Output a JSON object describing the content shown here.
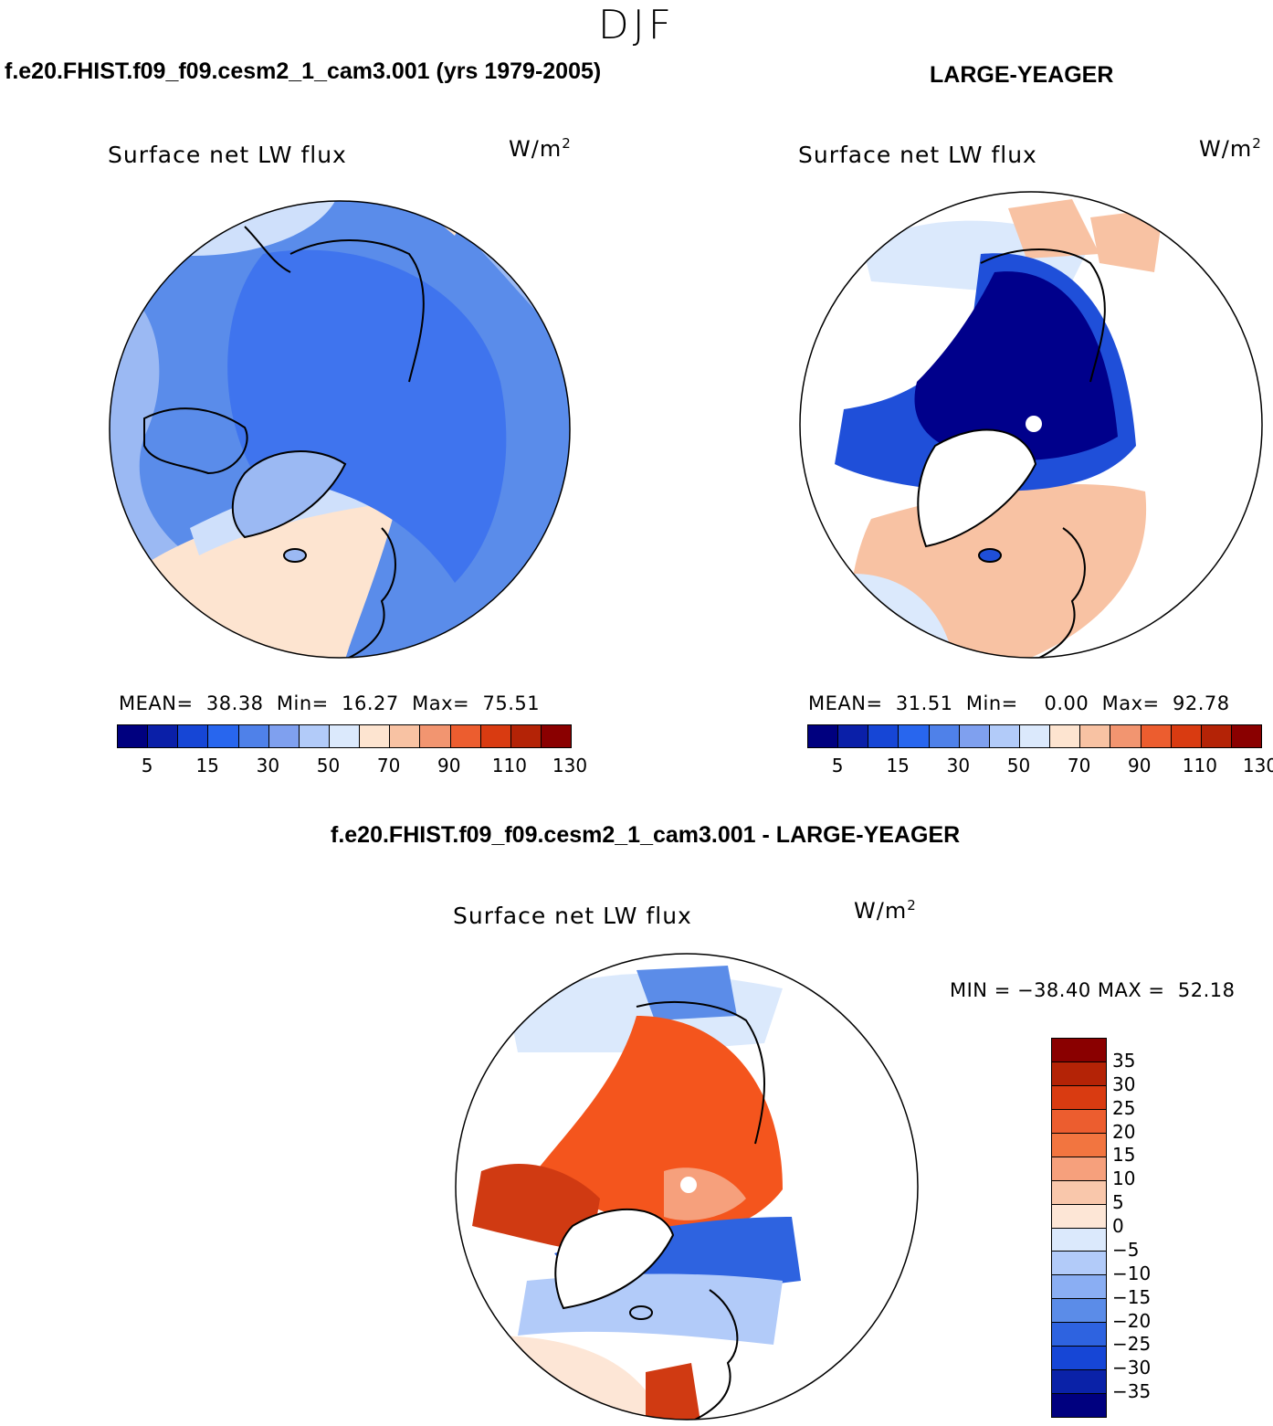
{
  "season": "DJF",
  "panels": {
    "model": {
      "header": "f.e20.FHIST.f09_f09.cesm2_1_cam3.001 (yrs 1979-2005)",
      "title": "Surface net LW flux",
      "units": "W/m",
      "units_exp": "2",
      "stats": {
        "mean_label": "MEAN=",
        "mean": "38.38",
        "min_label": "Min=",
        "min": "16.27",
        "max_label": "Max=",
        "max": "75.51"
      }
    },
    "obs": {
      "header": "LARGE-YEAGER",
      "title": "Surface net LW flux",
      "units": "W/m",
      "units_exp": "2",
      "stats": {
        "mean_label": "MEAN=",
        "mean": "31.51",
        "min_label": "Min=",
        "min": "0.00",
        "max_label": "Max=",
        "max": "92.78"
      }
    },
    "diff": {
      "header": "f.e20.FHIST.f09_f09.cesm2_1_cam3.001 - LARGE-YEAGER",
      "title": "Surface net LW flux",
      "units": "W/m",
      "units_exp": "2",
      "minmax": "MIN = −38.40 MAX =  52.18"
    }
  },
  "colorbars": {
    "abs": {
      "colors": [
        "#00007f",
        "#0a1fa8",
        "#1646d6",
        "#2866ee",
        "#4f81e9",
        "#7fa0ef",
        "#b2cbf9",
        "#dbe9fc",
        "#fde4d0",
        "#f8c2a3",
        "#f29570",
        "#ec5d2f",
        "#d93b11",
        "#b42306",
        "#8a0000"
      ],
      "ticks": [
        "5",
        "15",
        "30",
        "50",
        "70",
        "90",
        "110",
        "130"
      ]
    },
    "diff": {
      "colors": [
        "#8a0000",
        "#b42306",
        "#d93b11",
        "#ec5d2f",
        "#f27540",
        "#f6a07c",
        "#f9c7ab",
        "#fde6d6",
        "#dbe9fc",
        "#b2cbf9",
        "#8aaef3",
        "#5b8ce8",
        "#2e63e0",
        "#1646d6",
        "#0a22a8",
        "#00007f"
      ],
      "ticks": [
        "35",
        "30",
        "25",
        "20",
        "15",
        "10",
        "5",
        "0",
        "−5",
        "−10",
        "−15",
        "−20",
        "−25",
        "−30",
        "−35"
      ]
    }
  },
  "palette": {
    "land_outline": "#000000",
    "model_bg": "#5a8cea",
    "model_mid": "#3f74ee",
    "model_light": "#9bb9f3",
    "model_pale": "#cfe0fb",
    "peach": "#fde4d0",
    "obs_dark": "#00008b",
    "obs_mid": "#1f4fd9",
    "obs_pale": "#dbe9fc",
    "obs_salmon": "#f8c2a3",
    "diff_orange": "#f4551d",
    "diff_red": "#d03a12",
    "diff_blue": "#2e63e0",
    "diff_light_blue": "#b2cbf9",
    "pole_dot": "#ffffff"
  }
}
